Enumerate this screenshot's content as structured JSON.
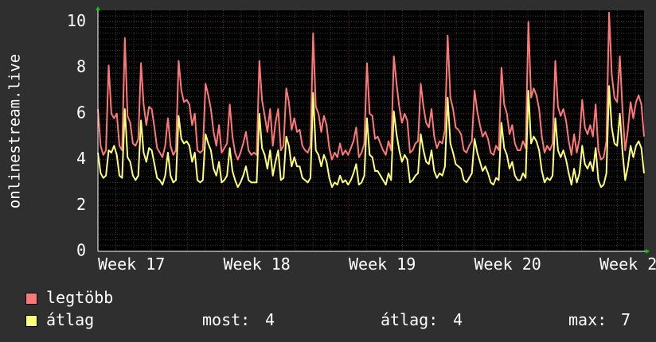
{
  "chart_data": {
    "type": "line",
    "ylabel": "onlinestream.live",
    "ylim": [
      0,
      10.5
    ],
    "yticks": [
      0,
      2,
      4,
      6,
      8,
      10
    ],
    "xticks": [
      "Week 17",
      "Week 18",
      "Week 19",
      "Week 20",
      "Week 2"
    ],
    "grid": true,
    "series": [
      {
        "name": "legtöbb",
        "color": "#ff7878",
        "values": [
          6.2,
          4.6,
          4.2,
          4.4,
          8.1,
          6.0,
          5.8,
          6.0,
          4.6,
          4.4,
          9.3,
          5.9,
          5.6,
          4.7,
          4.6,
          4.9,
          8.2,
          6.4,
          5.5,
          6.3,
          6.2,
          5.4,
          4.5,
          4.3,
          4.1,
          4.6,
          5.8,
          4.6,
          4.2,
          4.4,
          8.3,
          7.0,
          6.5,
          6.6,
          6.4,
          5.5,
          6.0,
          4.4,
          4.3,
          4.4,
          7.3,
          6.8,
          6.2,
          5.2,
          4.6,
          5.5,
          4.3,
          4.5,
          4.7,
          6.4,
          5.0,
          4.3,
          4.0,
          4.3,
          4.7,
          5.2,
          4.4,
          4.2,
          4.3,
          4.2,
          8.3,
          6.6,
          5.9,
          5.2,
          6.2,
          4.6,
          5.6,
          6.2,
          4.4,
          4.6,
          7.1,
          6.5,
          5.3,
          5.8,
          5.2,
          5.3,
          4.6,
          4.4,
          4.3,
          4.6,
          9.5,
          6.3,
          6.0,
          5.2,
          5.9,
          5.5,
          4.5,
          4.0,
          4.3,
          4.1,
          4.7,
          4.2,
          4.4,
          4.2,
          4.5,
          4.8,
          5.4,
          4.1,
          4.3,
          4.7,
          8.2,
          6.0,
          5.9,
          4.9,
          5.0,
          4.7,
          4.4,
          4.2,
          4.8,
          4.4,
          8.5,
          7.3,
          6.3,
          5.6,
          6.0,
          5.7,
          4.3,
          4.4,
          4.7,
          4.8,
          7.3,
          6.3,
          5.6,
          5.4,
          6.2,
          5.0,
          4.5,
          4.8,
          4.7,
          5.3,
          9.4,
          6.7,
          6.2,
          5.4,
          5.3,
          5.1,
          4.4,
          4.3,
          4.6,
          4.8,
          7.0,
          6.1,
          5.5,
          5.0,
          5.2,
          4.9,
          4.3,
          4.2,
          4.6,
          4.4,
          8.0,
          6.4,
          6.0,
          5.1,
          5.5,
          4.7,
          4.4,
          4.4,
          4.8,
          4.5,
          10.0,
          6.7,
          7.1,
          6.8,
          6.2,
          5.0,
          4.3,
          4.6,
          4.4,
          4.7,
          8.3,
          6.3,
          5.9,
          6.2,
          5.7,
          4.8,
          4.2,
          5.1,
          4.3,
          4.9,
          6.6,
          5.4,
          5.1,
          5.5,
          5.0,
          6.4,
          4.4,
          4.0,
          4.1,
          4.8,
          10.4,
          7.7,
          6.7,
          6.5,
          8.5,
          6.1,
          4.4,
          5.3,
          6.5,
          5.8,
          6.5,
          6.8,
          6.4,
          5.0
        ]
      },
      {
        "name": "átlag",
        "color": "#ffff78",
        "values": [
          4.3,
          3.4,
          3.2,
          3.3,
          4.4,
          4.3,
          4.6,
          4.2,
          3.3,
          3.2,
          6.2,
          4.1,
          3.9,
          3.3,
          3.1,
          3.3,
          5.7,
          4.3,
          3.9,
          4.5,
          4.4,
          3.8,
          3.2,
          3.1,
          2.9,
          3.3,
          4.3,
          3.3,
          3.0,
          3.1,
          5.9,
          4.9,
          4.7,
          4.8,
          4.6,
          3.9,
          4.3,
          3.1,
          3.0,
          3.1,
          5.1,
          4.7,
          4.4,
          3.6,
          3.3,
          3.9,
          3.0,
          3.1,
          3.3,
          4.5,
          3.5,
          3.1,
          2.8,
          3.0,
          3.3,
          3.7,
          3.1,
          3.0,
          3.0,
          3.0,
          6.0,
          4.5,
          4.2,
          3.6,
          4.4,
          3.3,
          3.9,
          4.4,
          3.1,
          3.2,
          5.0,
          4.6,
          3.7,
          4.1,
          3.7,
          3.7,
          3.2,
          3.1,
          3.0,
          3.2,
          6.9,
          4.4,
          4.2,
          3.7,
          4.2,
          3.9,
          3.2,
          2.8,
          3.0,
          2.9,
          3.3,
          3.0,
          3.1,
          2.9,
          3.1,
          3.4,
          3.8,
          2.9,
          3.0,
          3.3,
          5.8,
          4.2,
          4.1,
          3.5,
          3.5,
          3.3,
          3.1,
          2.9,
          3.4,
          3.1,
          6.1,
          5.1,
          4.4,
          3.9,
          4.2,
          4.0,
          3.0,
          3.1,
          3.3,
          3.4,
          5.1,
          4.4,
          3.9,
          3.8,
          4.4,
          3.5,
          3.2,
          3.4,
          3.3,
          3.7,
          6.7,
          4.7,
          4.3,
          3.8,
          3.7,
          3.6,
          3.1,
          3.0,
          3.2,
          3.4,
          4.9,
          4.3,
          3.9,
          3.5,
          3.7,
          3.4,
          3.0,
          2.9,
          3.2,
          3.1,
          5.6,
          4.5,
          4.2,
          3.6,
          3.9,
          3.3,
          3.1,
          3.1,
          3.4,
          3.2,
          7.0,
          4.7,
          5.0,
          4.8,
          4.4,
          3.5,
          3.0,
          3.2,
          3.1,
          3.3,
          5.8,
          4.4,
          4.1,
          4.4,
          4.0,
          3.4,
          2.9,
          3.6,
          3.0,
          3.4,
          4.6,
          3.8,
          3.6,
          3.9,
          3.5,
          4.5,
          3.1,
          2.8,
          2.9,
          3.4,
          7.2,
          5.4,
          4.7,
          4.6,
          6.0,
          4.3,
          3.1,
          3.7,
          4.6,
          4.1,
          4.6,
          4.8,
          4.5,
          3.4
        ]
      }
    ],
    "stats": {
      "most_label": "most:",
      "most": "4",
      "avg_label": "átlag:",
      "avg": "4",
      "max_label": "max:",
      "max": "7"
    }
  }
}
